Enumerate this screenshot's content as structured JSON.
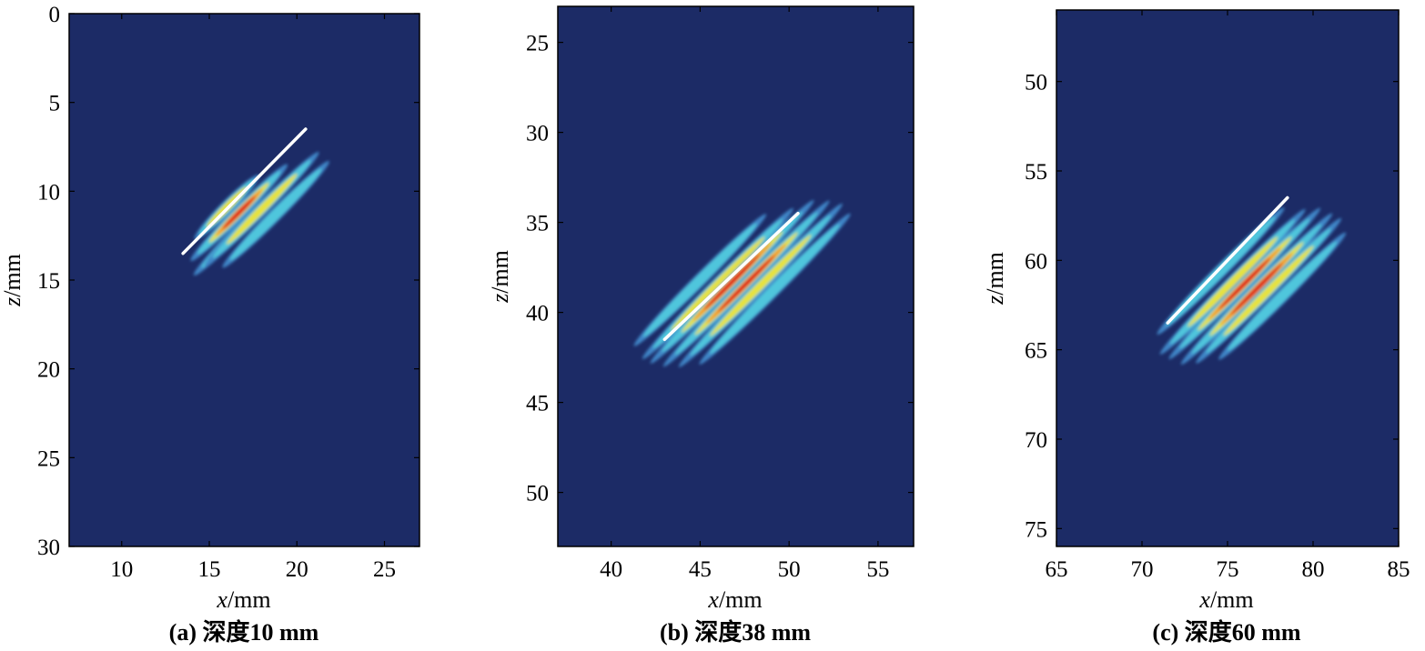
{
  "colors": {
    "background": "#1c2b66",
    "frame": "#000000",
    "blue": "#3f86c8",
    "cyan": "#4fc6dc",
    "yellow": "#e6e23c",
    "orange": "#f39a2a",
    "red": "#e0261f",
    "guide_line": "#ffffff"
  },
  "chart_data": [
    {
      "type": "heatmap",
      "caption": "(a) 深度10 mm",
      "xlabel_var": "x",
      "xlabel_unit": "/mm",
      "ylabel_var": "z",
      "ylabel_unit": "/mm",
      "xlim": [
        7,
        27
      ],
      "ylim": [
        0,
        30
      ],
      "y_inverted": true,
      "xticks": [
        10,
        15,
        20,
        25
      ],
      "yticks": [
        0,
        5,
        10,
        15,
        20,
        25,
        30
      ],
      "grid": false,
      "guide_line": {
        "x1": 13.5,
        "z1": 13.5,
        "x2": 20.5,
        "z2": 6.5
      },
      "stripes": [
        {
          "cx": 16.0,
          "cz": 10.9,
          "length": 5.2,
          "peak": "yellow"
        },
        {
          "cx": 16.7,
          "cz": 11.2,
          "length": 7.8,
          "peak": "red"
        },
        {
          "cx": 17.3,
          "cz": 11.6,
          "length": 9.0,
          "peak": "red"
        },
        {
          "cx": 18.0,
          "cz": 11.0,
          "length": 9.2,
          "peak": "yellow"
        },
        {
          "cx": 18.8,
          "cz": 11.3,
          "length": 8.6,
          "peak": "cyan"
        }
      ]
    },
    {
      "type": "heatmap",
      "caption": "(b) 深度38 mm",
      "xlabel_var": "x",
      "xlabel_unit": "/mm",
      "ylabel_var": "z",
      "ylabel_unit": "/mm",
      "xlim": [
        37,
        57
      ],
      "ylim": [
        23,
        53
      ],
      "y_inverted": true,
      "xticks": [
        40,
        45,
        50,
        55
      ],
      "yticks": [
        25,
        30,
        35,
        40,
        45,
        50
      ],
      "grid": false,
      "guide_line": {
        "x1": 43.0,
        "z1": 41.5,
        "x2": 50.5,
        "z2": 34.5
      },
      "stripes": [
        {
          "cx": 45.0,
          "cz": 38.2,
          "length": 10.5,
          "peak": "cyan"
        },
        {
          "cx": 46.0,
          "cz": 38.4,
          "length": 12.0,
          "peak": "yellow"
        },
        {
          "cx": 46.8,
          "cz": 38.3,
          "length": 13.0,
          "peak": "red"
        },
        {
          "cx": 47.6,
          "cz": 38.4,
          "length": 13.2,
          "peak": "red"
        },
        {
          "cx": 48.4,
          "cz": 38.5,
          "length": 13.0,
          "peak": "yellow"
        },
        {
          "cx": 49.2,
          "cz": 38.7,
          "length": 12.0,
          "peak": "cyan"
        }
      ]
    },
    {
      "type": "heatmap",
      "caption": "(c) 深度60 mm",
      "xlabel_var": "x",
      "xlabel_unit": "/mm",
      "ylabel_var": "z",
      "ylabel_unit": "/mm",
      "xlim": [
        65,
        85
      ],
      "ylim": [
        46,
        76
      ],
      "y_inverted": true,
      "xticks": [
        65,
        70,
        75,
        80,
        85
      ],
      "yticks": [
        50,
        55,
        60,
        65,
        70,
        75
      ],
      "grid": false,
      "guide_line": {
        "x1": 71.5,
        "z1": 63.5,
        "x2": 78.5,
        "z2": 56.5
      },
      "stripes": [
        {
          "cx": 74.6,
          "cz": 60.6,
          "length": 10.5,
          "peak": "cyan"
        },
        {
          "cx": 75.3,
          "cz": 61.2,
          "length": 12.0,
          "peak": "yellow"
        },
        {
          "cx": 76.0,
          "cz": 61.3,
          "length": 12.5,
          "peak": "red"
        },
        {
          "cx": 76.7,
          "cz": 61.6,
          "length": 12.5,
          "peak": "red"
        },
        {
          "cx": 77.4,
          "cz": 61.7,
          "length": 12.0,
          "peak": "yellow"
        },
        {
          "cx": 78.2,
          "cz": 62.0,
          "length": 10.5,
          "peak": "cyan"
        }
      ]
    }
  ]
}
